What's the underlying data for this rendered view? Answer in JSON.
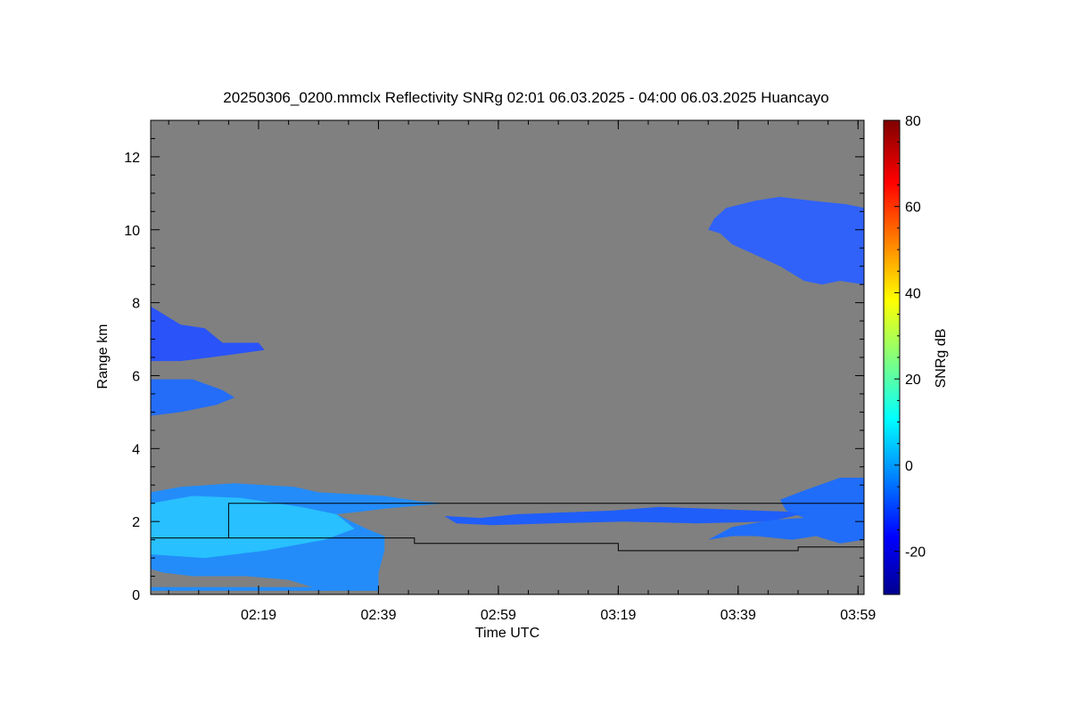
{
  "chart_data": {
    "type": "heatmap",
    "title": "20250306_0200.mmclx Reflectivity SNRg   02:01 06.03.2025 - 04:00 06.03.2025 Huancayo",
    "xlabel": "Time UTC",
    "ylabel": "Range km",
    "x_range_minutes": [
      121,
      240
    ],
    "y_range_km": [
      0,
      13
    ],
    "x_ticks": [
      {
        "minute": 139,
        "label": "02:19"
      },
      {
        "minute": 159,
        "label": "02:39"
      },
      {
        "minute": 179,
        "label": "02:59"
      },
      {
        "minute": 199,
        "label": "03:19"
      },
      {
        "minute": 219,
        "label": "03:39"
      },
      {
        "minute": 239,
        "label": "03:59"
      }
    ],
    "y_ticks": [
      {
        "value": 0,
        "label": "0"
      },
      {
        "value": 2,
        "label": "2"
      },
      {
        "value": 4,
        "label": "4"
      },
      {
        "value": 6,
        "label": "6"
      },
      {
        "value": 8,
        "label": "8"
      },
      {
        "value": 10,
        "label": "10"
      },
      {
        "value": 12,
        "label": "12"
      }
    ],
    "colorbar": {
      "label": "SNRg dB",
      "range": [
        -30,
        80
      ],
      "ticks": [
        {
          "value": -20,
          "label": "-20"
        },
        {
          "value": 0,
          "label": "0"
        },
        {
          "value": 20,
          "label": "20"
        },
        {
          "value": 40,
          "label": "40"
        },
        {
          "value": 60,
          "label": "60"
        },
        {
          "value": 80,
          "label": "80"
        }
      ],
      "colormap": "jet"
    },
    "background_color": "#808080",
    "echoes": [
      {
        "id": "low-cloud-left",
        "polygon": [
          [
            121,
            0.2
          ],
          [
            121,
            2.8
          ],
          [
            126,
            2.95
          ],
          [
            135,
            3.05
          ],
          [
            145,
            2.95
          ],
          [
            149,
            2.8
          ],
          [
            155,
            2.75
          ],
          [
            160,
            2.7
          ],
          [
            166,
            2.55
          ],
          [
            170,
            2.5
          ],
          [
            160,
            2.35
          ],
          [
            155,
            2.25
          ],
          [
            152,
            2.2
          ],
          [
            157,
            1.8
          ],
          [
            160,
            1.6
          ],
          [
            160,
            1.2
          ],
          [
            159,
            0.6
          ],
          [
            159,
            0.1
          ],
          [
            139,
            0.1
          ],
          [
            130,
            0.1
          ],
          [
            121,
            0.1
          ]
        ],
        "snr_db": 5,
        "color": "#1e8cff"
      },
      {
        "id": "low-cloud-core",
        "polygon": [
          [
            121,
            1.6
          ],
          [
            121,
            2.5
          ],
          [
            128,
            2.7
          ],
          [
            136,
            2.65
          ],
          [
            146,
            2.4
          ],
          [
            152,
            2.2
          ],
          [
            155,
            1.8
          ],
          [
            150,
            1.5
          ],
          [
            140,
            1.2
          ],
          [
            130,
            1.0
          ],
          [
            121,
            1.1
          ]
        ],
        "snr_db": 12,
        "color": "#29c3ff"
      },
      {
        "id": "clear-gap-left",
        "polygon": [
          [
            121,
            0.2
          ],
          [
            121,
            0.7
          ],
          [
            123,
            0.6
          ],
          [
            128,
            0.5
          ],
          [
            137,
            0.5
          ],
          [
            144,
            0.4
          ],
          [
            148,
            0.2
          ]
        ],
        "snr_db": null,
        "color": "#808080"
      },
      {
        "id": "high-layer-left-1",
        "polygon": [
          [
            121,
            7.9
          ],
          [
            121,
            6.4
          ],
          [
            126,
            6.4
          ],
          [
            131,
            6.5
          ],
          [
            140,
            6.7
          ],
          [
            139,
            6.9
          ],
          [
            133,
            6.9
          ],
          [
            130,
            7.3
          ],
          [
            126,
            7.4
          ],
          [
            121,
            7.9
          ]
        ],
        "snr_db": -8,
        "color": "#2550ff"
      },
      {
        "id": "high-layer-left-2",
        "polygon": [
          [
            121,
            5.9
          ],
          [
            121,
            4.9
          ],
          [
            126,
            5.0
          ],
          [
            132,
            5.2
          ],
          [
            135,
            5.4
          ],
          [
            133,
            5.6
          ],
          [
            128,
            5.9
          ],
          [
            124,
            5.9
          ]
        ],
        "snr_db": -3,
        "color": "#1e6cff"
      },
      {
        "id": "mid-band-thin",
        "polygon": [
          [
            170,
            2.15
          ],
          [
            176,
            2.1
          ],
          [
            182,
            2.2
          ],
          [
            190,
            2.25
          ],
          [
            198,
            2.3
          ],
          [
            206,
            2.4
          ],
          [
            214,
            2.35
          ],
          [
            222,
            2.3
          ],
          [
            231,
            2.25
          ],
          [
            224,
            2.0
          ],
          [
            212,
            1.95
          ],
          [
            200,
            2.0
          ],
          [
            188,
            1.95
          ],
          [
            178,
            1.9
          ],
          [
            172,
            1.95
          ]
        ],
        "snr_db": -4,
        "color": "#1a5cff"
      },
      {
        "id": "high-cloud-right",
        "polygon": [
          [
            217,
            10.6
          ],
          [
            222,
            10.8
          ],
          [
            226,
            10.9
          ],
          [
            231,
            10.8
          ],
          [
            237,
            10.7
          ],
          [
            240,
            10.6
          ],
          [
            240,
            8.5
          ],
          [
            236,
            8.6
          ],
          [
            233,
            8.5
          ],
          [
            230,
            8.6
          ],
          [
            226,
            9.0
          ],
          [
            222,
            9.3
          ],
          [
            218,
            9.6
          ],
          [
            216,
            9.9
          ],
          [
            214,
            10.0
          ],
          [
            215,
            10.3
          ]
        ],
        "snr_db": -6,
        "color": "#2b60ff"
      },
      {
        "id": "low-cloud-right",
        "polygon": [
          [
            226,
            2.6
          ],
          [
            230,
            2.85
          ],
          [
            236,
            3.2
          ],
          [
            240,
            3.2
          ],
          [
            240,
            1.5
          ],
          [
            236,
            1.4
          ],
          [
            232,
            1.6
          ],
          [
            228,
            1.5
          ],
          [
            222,
            1.6
          ],
          [
            218,
            1.6
          ],
          [
            214,
            1.5
          ],
          [
            218,
            1.85
          ],
          [
            225,
            2.05
          ],
          [
            230,
            2.1
          ],
          [
            227,
            2.3
          ]
        ],
        "snr_db": -1,
        "color": "#1a6cff"
      }
    ],
    "boundary_line": [
      [
        121,
        1.55
      ],
      [
        134,
        1.55
      ],
      [
        134,
        2.5
      ],
      [
        240,
        2.5
      ],
      [
        240,
        1.3
      ],
      [
        229,
        1.3
      ],
      [
        229,
        1.2
      ],
      [
        199,
        1.2
      ],
      [
        199,
        1.4
      ],
      [
        165,
        1.4
      ],
      [
        165,
        1.55
      ],
      [
        121,
        1.55
      ]
    ]
  }
}
